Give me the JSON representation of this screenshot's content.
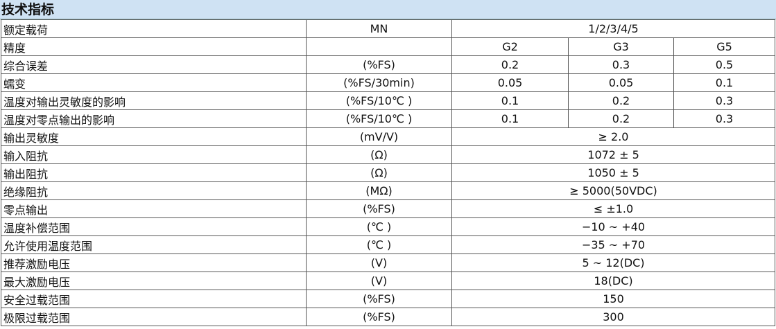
{
  "header": {
    "title": "技术指标"
  },
  "table": {
    "rows": [
      {
        "label": "额定载荷",
        "unit": "MN",
        "values": [
          "1/2/3/4/5"
        ]
      },
      {
        "label": "精度",
        "values": [
          "G2",
          "G3",
          "G5"
        ]
      },
      {
        "label": "综合误差",
        "unit": "(%FS)",
        "values": [
          "0.2",
          "0.3",
          "0.5"
        ]
      },
      {
        "label": "蠕变",
        "unit": "(%FS/30min)",
        "values": [
          "0.05",
          "0.05",
          "0.1"
        ]
      },
      {
        "label": "温度对输出灵敏度的影响",
        "unit": "(%FS/10℃ )",
        "values": [
          "0.1",
          "0.2",
          "0.3"
        ]
      },
      {
        "label": "温度对零点输出的影响",
        "unit": "(%FS/10℃ )",
        "values": [
          "0.1",
          "0.2",
          "0.3"
        ]
      },
      {
        "label": "输出灵敏度",
        "unit": "(mV/V)",
        "values": [
          "≥ 2.0"
        ]
      },
      {
        "label": "输入阻抗",
        "unit": "(Ω)",
        "values": [
          "1072 ± 5"
        ]
      },
      {
        "label": "输出阻抗",
        "unit": "(Ω)",
        "values": [
          "1050 ± 5"
        ]
      },
      {
        "label": "绝缘阻抗",
        "unit": "(MΩ)",
        "values": [
          "≥ 5000(50VDC)"
        ]
      },
      {
        "label": "零点输出",
        "unit": "(%FS)",
        "values": [
          "≤ ±1.0"
        ]
      },
      {
        "label": "温度补偿范围",
        "unit": "(℃ )",
        "values": [
          "−10 ~ +40"
        ]
      },
      {
        "label": "允许使用温度范围",
        "unit": "(℃ )",
        "values": [
          "−35 ~ +70"
        ]
      },
      {
        "label": "推荐激励电压",
        "unit": "(V)",
        "values": [
          "5 ~ 12(DC)"
        ]
      },
      {
        "label": "最大激励电压",
        "unit": "(V)",
        "values": [
          "18(DC)"
        ]
      },
      {
        "label": "安全过载范围",
        "unit": "(%FS)",
        "values": [
          "150"
        ]
      },
      {
        "label": "极限过载范围",
        "unit": "(%FS)",
        "values": [
          "300"
        ]
      }
    ]
  }
}
